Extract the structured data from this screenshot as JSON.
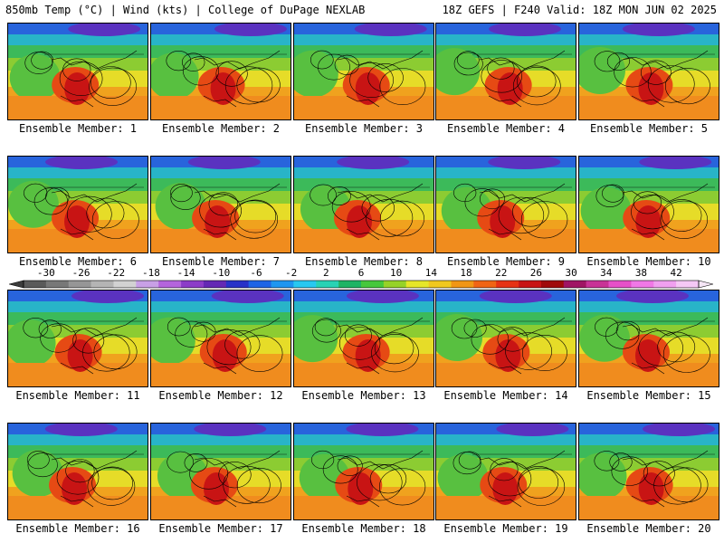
{
  "header": {
    "title_left": "850mb Temp (°C) | Wind (kts) | College of DuPage NEXLAB",
    "title_right": "18Z GEFS | F240 Valid: 18Z MON JUN 02 2025"
  },
  "members": [
    {
      "caption": "Ensemble Member: 1"
    },
    {
      "caption": "Ensemble Member: 2"
    },
    {
      "caption": "Ensemble Member: 3"
    },
    {
      "caption": "Ensemble Member: 4"
    },
    {
      "caption": "Ensemble Member: 5"
    },
    {
      "caption": "Ensemble Member: 6"
    },
    {
      "caption": "Ensemble Member: 7"
    },
    {
      "caption": "Ensemble Member: 8"
    },
    {
      "caption": "Ensemble Member: 9"
    },
    {
      "caption": "Ensemble Member: 10"
    },
    {
      "caption": "Ensemble Member: 11"
    },
    {
      "caption": "Ensemble Member: 12"
    },
    {
      "caption": "Ensemble Member: 13"
    },
    {
      "caption": "Ensemble Member: 14"
    },
    {
      "caption": "Ensemble Member: 15"
    },
    {
      "caption": "Ensemble Member: 16"
    },
    {
      "caption": "Ensemble Member: 17"
    },
    {
      "caption": "Ensemble Member: 18"
    },
    {
      "caption": "Ensemble Member: 19"
    },
    {
      "caption": "Ensemble Member: 20"
    }
  ],
  "colorbar": {
    "ticks": [
      "-30",
      "-26",
      "-22",
      "-18",
      "-14",
      "-10",
      "-6",
      "-2",
      "2",
      "6",
      "10",
      "14",
      "18",
      "22",
      "26",
      "30",
      "34",
      "38",
      "42"
    ],
    "colors": [
      "#5a5a5a",
      "#787878",
      "#969696",
      "#b4b4b4",
      "#d2d2d2",
      "#c8a0e6",
      "#b464dc",
      "#8c3cc8",
      "#6428b4",
      "#2832c8",
      "#1e64e6",
      "#1e96f0",
      "#28c8f0",
      "#28d2b4",
      "#1eb464",
      "#46c83c",
      "#96d228",
      "#e6e628",
      "#f0c81e",
      "#f09614",
      "#f06414",
      "#e63214",
      "#c81414",
      "#a00a0a",
      "#a01464",
      "#c83296",
      "#e650c8",
      "#f078e6",
      "#f0a0f0",
      "#f5c8f5"
    ]
  }
}
